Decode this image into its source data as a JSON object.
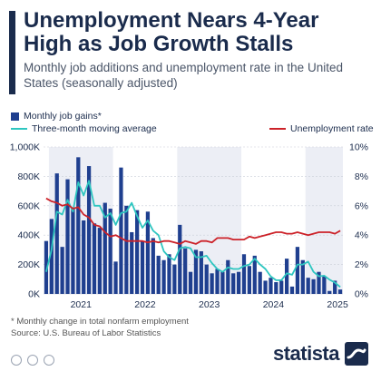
{
  "title": "Unemployment Nears 4-Year High as Job Growth Stalls",
  "subtitle": "Monthly job additions and unemployment rate in the United States (seasonally adjusted)",
  "footnote": "* Monthly change in total nonfarm employment",
  "source": "Source: U.S. Bureau of Labor Statistics",
  "brand": "statista",
  "colors": {
    "bars": "#1f3f8f",
    "moving_average": "#2ec6c0",
    "unemployment": "#cc2229",
    "shade": "#eceef5",
    "text": "#1a2b4c"
  },
  "chart_data": {
    "type": "bar",
    "legend": [
      {
        "label": "Monthly job gains*",
        "kind": "bar"
      },
      {
        "label": "Three-month moving average",
        "kind": "line"
      },
      {
        "label": "Unemployment rate",
        "kind": "line"
      }
    ],
    "x_labels": [
      "2021",
      "2022",
      "2023",
      "2024",
      "2025"
    ],
    "y_left": {
      "min": 0,
      "max": 1000000,
      "ticks": [
        "0K",
        "200K",
        "400K",
        "600K",
        "800K",
        "1,000K"
      ]
    },
    "y_right": {
      "min": 0,
      "max": 10,
      "ticks": [
        "0%",
        "2%",
        "4%",
        "6%",
        "8%",
        "10%"
      ]
    },
    "months": [
      "2020-12",
      "2021-01",
      "2021-02",
      "2021-03",
      "2021-04",
      "2021-05",
      "2021-06",
      "2021-07",
      "2021-08",
      "2021-09",
      "2021-10",
      "2021-11",
      "2021-12",
      "2022-01",
      "2022-02",
      "2022-03",
      "2022-04",
      "2022-05",
      "2022-06",
      "2022-07",
      "2022-08",
      "2022-09",
      "2022-10",
      "2022-11",
      "2022-12",
      "2023-01",
      "2023-02",
      "2023-03",
      "2023-04",
      "2023-05",
      "2023-06",
      "2023-07",
      "2023-08",
      "2023-09",
      "2023-10",
      "2023-11",
      "2023-12",
      "2024-01",
      "2024-02",
      "2024-03",
      "2024-04",
      "2024-05",
      "2024-06",
      "2024-07",
      "2024-08",
      "2024-09",
      "2024-10",
      "2024-11",
      "2024-12",
      "2025-01",
      "2025-02",
      "2025-03",
      "2025-04",
      "2025-05",
      "2025-06",
      "2025-07"
    ],
    "job_gains": [
      360000,
      510000,
      820000,
      320000,
      780000,
      580000,
      930000,
      500000,
      870000,
      480000,
      450000,
      620000,
      580000,
      220000,
      860000,
      600000,
      420000,
      570000,
      360000,
      560000,
      380000,
      260000,
      230000,
      270000,
      200000,
      470000,
      310000,
      150000,
      300000,
      290000,
      200000,
      140000,
      170000,
      150000,
      230000,
      140000,
      150000,
      270000,
      190000,
      260000,
      150000,
      90000,
      110000,
      80000,
      90000,
      240000,
      50000,
      320000,
      230000,
      110000,
      100000,
      150000,
      120000,
      20000,
      90000,
      30000
    ],
    "moving_average": [
      150000,
      300000,
      560000,
      540000,
      640000,
      560000,
      760000,
      670000,
      770000,
      600000,
      600000,
      520000,
      550000,
      470000,
      550000,
      560000,
      620000,
      530000,
      450000,
      500000,
      430000,
      400000,
      290000,
      250000,
      230000,
      310000,
      320000,
      310000,
      250000,
      250000,
      260000,
      210000,
      170000,
      150000,
      180000,
      170000,
      170000,
      190000,
      200000,
      240000,
      200000,
      170000,
      120000,
      93000,
      93000,
      140000,
      130000,
      200000,
      200000,
      220000,
      150000,
      120000,
      124000,
      97000,
      77000,
      47000
    ],
    "unemployment": [
      6.5,
      6.3,
      6.2,
      6.0,
      6.1,
      5.8,
      5.9,
      5.4,
      5.2,
      4.7,
      4.6,
      4.2,
      3.9,
      4.0,
      3.8,
      3.6,
      3.6,
      3.6,
      3.6,
      3.5,
      3.6,
      3.5,
      3.6,
      3.6,
      3.5,
      3.4,
      3.6,
      3.5,
      3.4,
      3.6,
      3.6,
      3.5,
      3.8,
      3.8,
      3.8,
      3.7,
      3.7,
      3.7,
      3.9,
      3.8,
      3.9,
      4.0,
      4.1,
      4.2,
      4.2,
      4.1,
      4.1,
      4.2,
      4.1,
      4.0,
      4.1,
      4.2,
      4.2,
      4.2,
      4.1,
      4.3
    ]
  }
}
